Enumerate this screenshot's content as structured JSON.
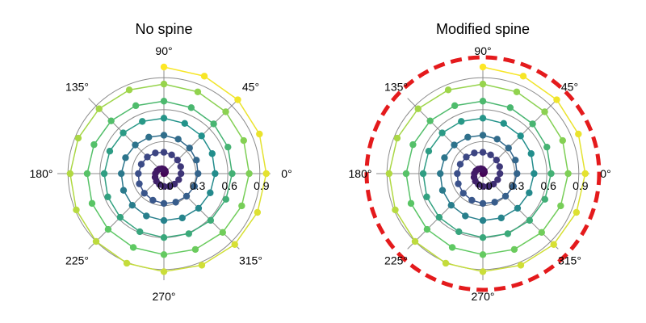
{
  "chart_data": [
    {
      "type": "scatter",
      "title": "No spine",
      "projection": "polar",
      "theta_ticks": [
        "0°",
        "45°",
        "90°",
        "135°",
        "180°",
        "225°",
        "270°",
        "315°"
      ],
      "r_ticks": [
        "0.0",
        "0.3",
        "0.6",
        "0.9"
      ],
      "r_grid": [
        0.3,
        0.6,
        0.9
      ],
      "rlim": [
        0,
        1.0
      ],
      "spine": "hidden",
      "grid": true,
      "colormap": "viridis",
      "series": {
        "theta_deg_start": 0,
        "theta_deg_step": 22.5,
        "r_start": 0.0,
        "r_step": 0.01,
        "points": 101,
        "r_end": 1.0
      }
    },
    {
      "type": "scatter",
      "title": "Modified spine",
      "projection": "polar",
      "theta_ticks": [
        "0°",
        "45°",
        "90°",
        "135°",
        "180°",
        "225°",
        "270°",
        "315°"
      ],
      "r_ticks": [
        "0.0",
        "0.3",
        "0.6",
        "0.9"
      ],
      "r_grid": [
        0.3,
        0.6,
        0.9
      ],
      "rlim": [
        0,
        1.0
      ],
      "spine": "dashed",
      "spine_color": "#e41a1c",
      "grid": true,
      "colormap": "viridis",
      "series": {
        "theta_deg_start": 0,
        "theta_deg_step": 22.5,
        "r_start": 0.0,
        "r_step": 0.01,
        "points": 101,
        "r_end": 1.0
      }
    }
  ]
}
